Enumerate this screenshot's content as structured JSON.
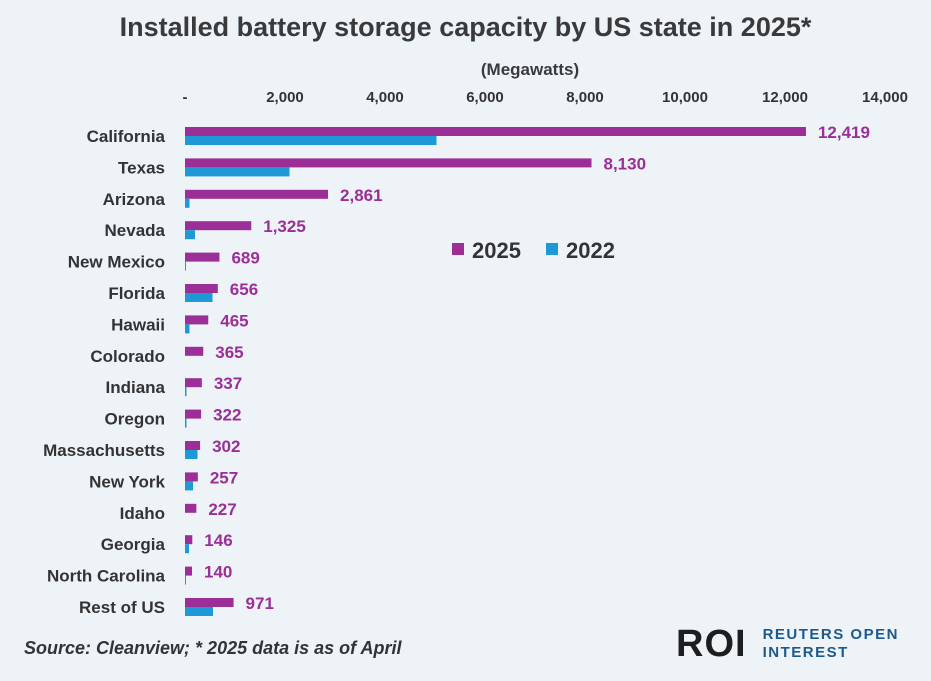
{
  "chart_data": {
    "type": "bar",
    "orientation": "horizontal",
    "title": "Installed battery storage capacity by US state in 2025*",
    "subtitle": "(Megawatts)",
    "xlabel": "(Megawatts)",
    "ylabel": "",
    "xlim": [
      0,
      14000
    ],
    "tick_labels": [
      "-",
      "2,000",
      "4,000",
      "6,000",
      "8,000",
      "10,000",
      "12,000",
      "14,000"
    ],
    "tick_values": [
      0,
      2000,
      4000,
      6000,
      8000,
      10000,
      12000,
      14000
    ],
    "grid": false,
    "legend_position": "right-center",
    "categories": [
      "California",
      "Texas",
      "Arizona",
      "Nevada",
      "New Mexico",
      "Florida",
      "Hawaii",
      "Colorado",
      "Indiana",
      "Oregon",
      "Massachusetts",
      "New York",
      "Idaho",
      "Georgia",
      "North Carolina",
      "Rest of US"
    ],
    "series": [
      {
        "name": "2025",
        "color": "#9b2e97",
        "values": [
          12419,
          8130,
          2861,
          1325,
          689,
          656,
          465,
          365,
          337,
          322,
          302,
          257,
          227,
          146,
          140,
          971
        ],
        "data_labels": [
          "12,419",
          "8,130",
          "2,861",
          "1,325",
          "689",
          "656",
          "465",
          "365",
          "337",
          "322",
          "302",
          "257",
          "227",
          "146",
          "140",
          "971"
        ]
      },
      {
        "name": "2022",
        "color": "#1d9ad6",
        "values": [
          5030,
          2090,
          90,
          200,
          20,
          550,
          90,
          0,
          30,
          30,
          250,
          160,
          0,
          80,
          20,
          560
        ]
      }
    ]
  },
  "footer": {
    "source": "Source: Cleanview; * 2025 data is as of April",
    "logo_mark": "ROI",
    "logo_line1": "REUTERS OPEN",
    "logo_line2": "INTEREST"
  }
}
